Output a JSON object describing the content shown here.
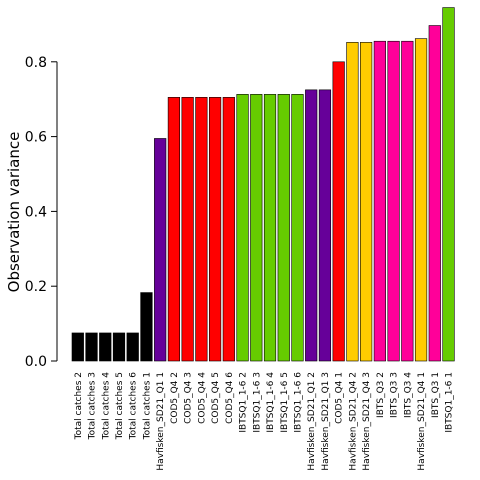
{
  "chart_data": {
    "type": "bar",
    "title": "",
    "xlabel": "",
    "ylabel": "Observation variance",
    "ylim": [
      0,
      0.94
    ],
    "yticks": [
      "0.0",
      "0.2",
      "0.4",
      "0.6",
      "0.8"
    ],
    "grid": false,
    "legend": "none",
    "categories": [
      "Total catches 2",
      "Total catches 3",
      "Total catches 4",
      "Total catches 5",
      "Total catches 6",
      "Total catches 1",
      "Havfisken_SD21_Q1 1",
      "COD5_Q4 2",
      "COD5_Q4 3",
      "COD5_Q4 4",
      "COD5_Q4 5",
      "COD5_Q4 6",
      "IBTSQ1_1-6 2",
      "IBTSQ1_1-6 3",
      "IBTSQ1_1-6 4",
      "IBTSQ1_1-6 5",
      "IBTSQ1_1-6 6",
      "Havfisken_SD21_Q1 2",
      "Havfisken_SD21_Q1 3",
      "COD5_Q4 1",
      "Havfisken_SD21_Q4 2",
      "Havfisken_SD21_Q4 3",
      "IBTS_Q3 2",
      "IBTS_Q3 3",
      "IBTS_Q3 4",
      "Havfisken_SD21_Q4 1",
      "IBTS_Q3 1",
      "IBTSQ1_1-6 1"
    ],
    "values": [
      0.075,
      0.075,
      0.075,
      0.075,
      0.075,
      0.183,
      0.595,
      0.705,
      0.705,
      0.705,
      0.705,
      0.705,
      0.713,
      0.713,
      0.713,
      0.713,
      0.713,
      0.725,
      0.725,
      0.8,
      0.852,
      0.852,
      0.855,
      0.855,
      0.855,
      0.862,
      0.897,
      0.945
    ],
    "colors": [
      "#000000",
      "#000000",
      "#000000",
      "#000000",
      "#000000",
      "#000000",
      "#660099",
      "#ff0000",
      "#ff0000",
      "#ff0000",
      "#ff0000",
      "#ff0000",
      "#66cc00",
      "#66cc00",
      "#66cc00",
      "#66cc00",
      "#66cc00",
      "#660099",
      "#660099",
      "#ff0000",
      "#ffcc00",
      "#ffcc00",
      "#ff0099",
      "#ff0099",
      "#ff0099",
      "#ffcc00",
      "#ff0099",
      "#66cc00"
    ]
  }
}
